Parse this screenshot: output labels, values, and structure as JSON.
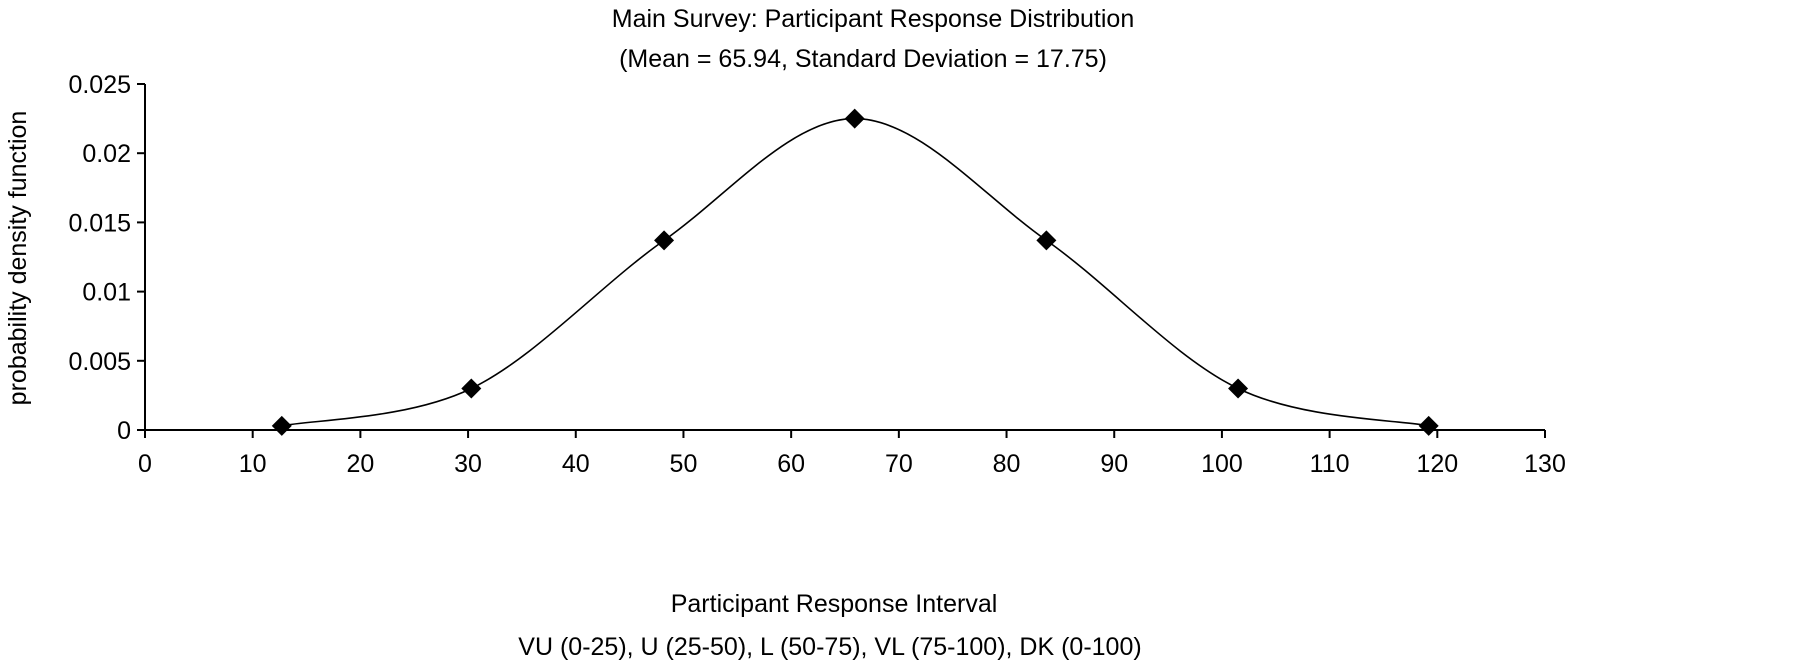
{
  "chart_data": {
    "type": "line",
    "title": "Main Survey: Participant Response Distribution",
    "subtitle": "(Mean = 65.94, Standard Deviation = 17.75)",
    "xlabel": "Participant Response Interval",
    "xlabel2": "VU (0-25), U (25-50), L (50-75), VL (75-100), DK (0-100)",
    "ylabel": "probability density function",
    "xlim": [
      0,
      130
    ],
    "ylim": [
      0,
      0.025
    ],
    "xticks": [
      0,
      10,
      20,
      30,
      40,
      50,
      60,
      70,
      80,
      90,
      100,
      110,
      120,
      130
    ],
    "yticks": [
      "0",
      "0.005",
      "0.01",
      "0.015",
      "0.02",
      "0.025"
    ],
    "grid": false,
    "marker": "diamond",
    "colors": {
      "line": "#000000",
      "marker": "#000000"
    },
    "series": [
      {
        "x": [
          12.7,
          30.3,
          48.2,
          65.9,
          83.7,
          101.5,
          119.2
        ],
        "y": [
          0.0003,
          0.003,
          0.0137,
          0.0225,
          0.0137,
          0.003,
          0.0003
        ]
      }
    ]
  }
}
